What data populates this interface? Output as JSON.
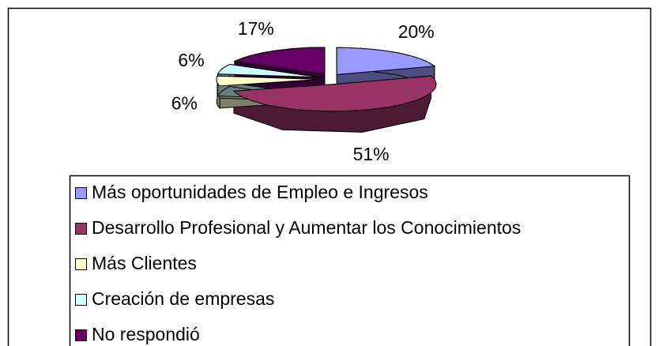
{
  "chart_data": {
    "type": "pie",
    "categories": [
      "Más oportunidades de Empleo e Ingresos",
      "Desarrollo Profesional y Aumentar los Conocimientos",
      "Más Clientes",
      "Creación de empresas",
      "No respondió"
    ],
    "values": [
      20,
      51,
      6,
      6,
      17
    ],
    "value_labels": [
      "20%",
      "51%",
      "6%",
      "6%",
      "17%"
    ],
    "colors": [
      "#9999ff",
      "#993366",
      "#ffffcc",
      "#ccffff",
      "#660066"
    ],
    "legend": "bottom"
  }
}
